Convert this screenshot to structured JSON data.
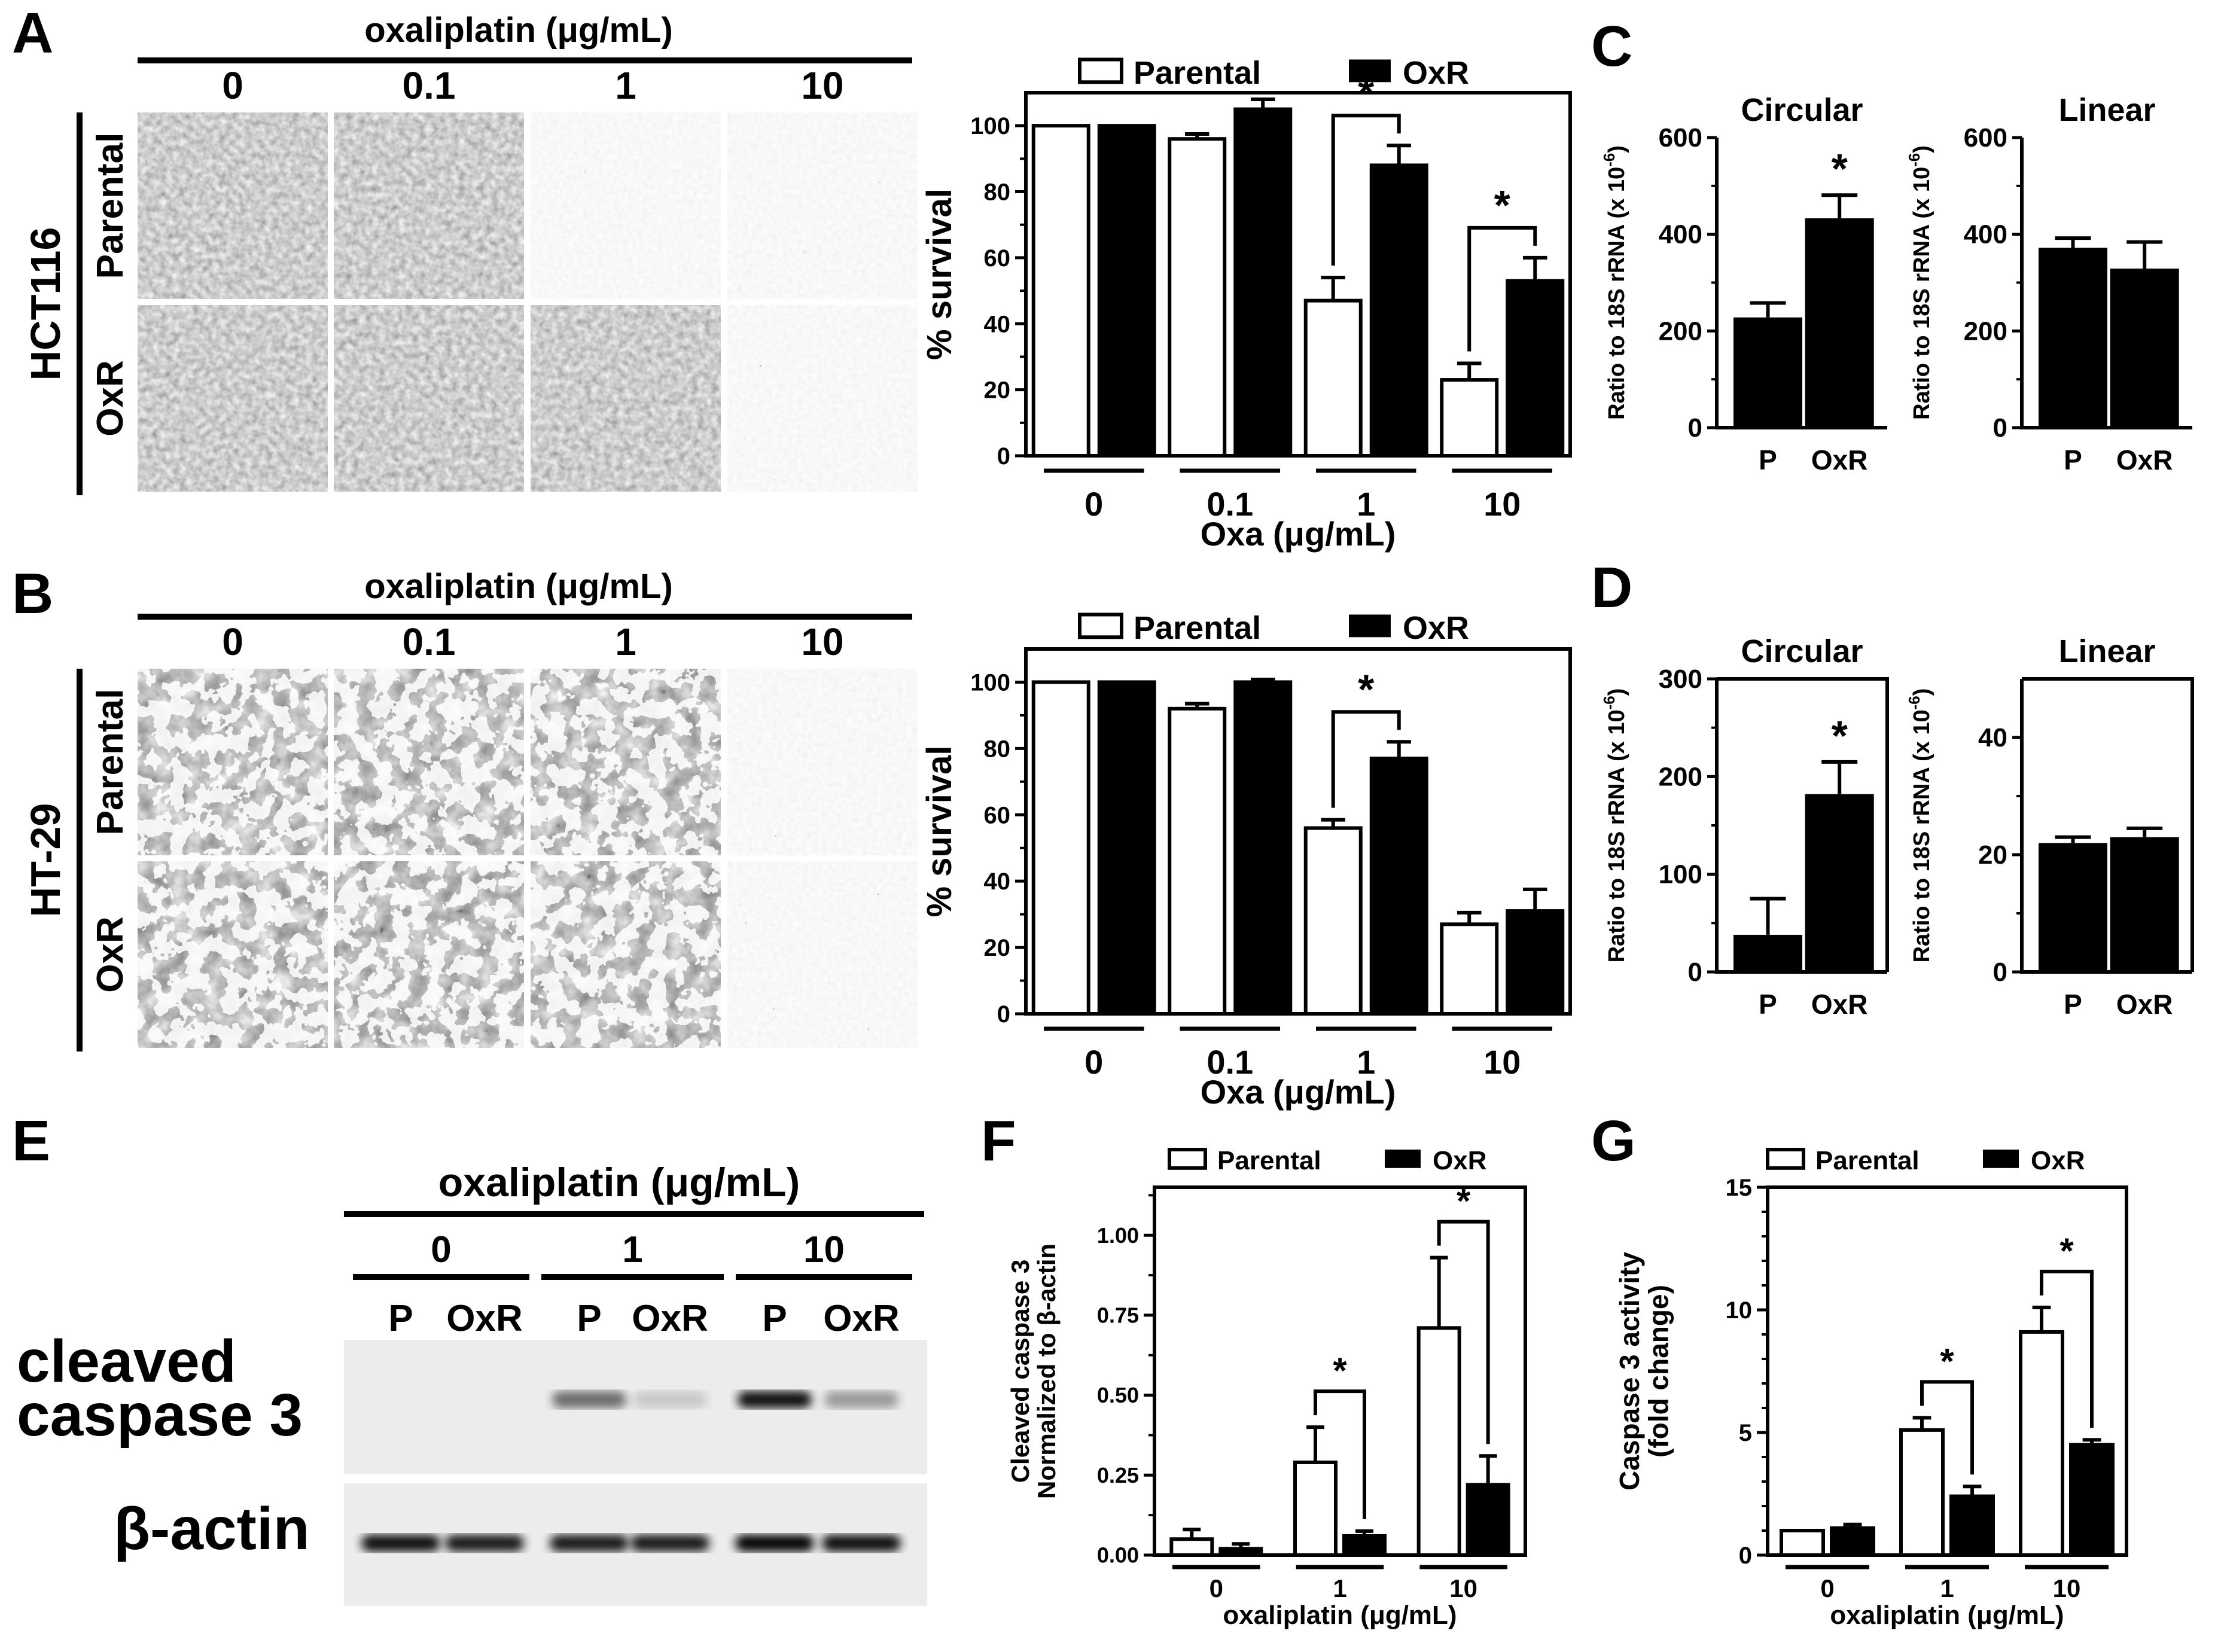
{
  "panels": {
    "A": {
      "letter": "A",
      "cell_line": "HCT116",
      "image_header": "oxaliplatin (μg/mL)",
      "columns": [
        "0",
        "0.1",
        "1",
        "10"
      ],
      "rows": [
        "Parental",
        "OxR"
      ]
    },
    "B": {
      "letter": "B",
      "cell_line": "HT-29",
      "image_header": "oxaliplatin (μg/mL)",
      "columns": [
        "0",
        "0.1",
        "1",
        "10"
      ],
      "rows": [
        "Parental",
        "OxR"
      ]
    },
    "C": {
      "letter": "C"
    },
    "D": {
      "letter": "D"
    },
    "E": {
      "letter": "E",
      "header": "oxaliplatin (μg/mL)",
      "doses": [
        "0",
        "1",
        "10"
      ],
      "lanes": [
        "P",
        "OxR",
        "P",
        "OxR",
        "P",
        "OxR"
      ],
      "bands": [
        "cleaved caspase 3",
        "β-actin"
      ],
      "band_label_line1": "cleaved",
      "band_label_line2": "caspase 3",
      "cleaved_intensity": [
        0.0,
        0.0,
        0.55,
        0.15,
        0.95,
        0.35
      ],
      "actin_intensity": [
        0.95,
        0.9,
        0.9,
        0.9,
        1.0,
        0.95
      ]
    },
    "F": {
      "letter": "F"
    },
    "G": {
      "letter": "G"
    }
  },
  "legend": {
    "parental": "Parental",
    "oxr": "OxR"
  },
  "chart_data": [
    {
      "id": "A-survival",
      "type": "bar",
      "categories": [
        "0",
        "0.1",
        "1",
        "10"
      ],
      "series": [
        {
          "name": "Parental",
          "values": [
            100,
            96,
            47,
            23
          ],
          "errors": [
            0,
            1.5,
            7,
            5
          ],
          "fill": "#ffffff"
        },
        {
          "name": "OxR",
          "values": [
            100,
            105,
            88,
            53
          ],
          "errors": [
            0,
            3,
            6,
            7
          ],
          "fill": "#000000"
        }
      ],
      "ylabel": "% survival",
      "xlabel": "Oxa (μg/mL)",
      "ylim": [
        0,
        110
      ],
      "yticks": [
        "0",
        "20",
        "40",
        "60",
        "80",
        "100"
      ],
      "significance": [
        "",
        "",
        "*",
        "*"
      ]
    },
    {
      "id": "B-survival",
      "type": "bar",
      "categories": [
        "0",
        "0.1",
        "1",
        "10"
      ],
      "series": [
        {
          "name": "Parental",
          "values": [
            100,
            92,
            56,
            27
          ],
          "errors": [
            0,
            1.5,
            2.5,
            3.5
          ],
          "fill": "#ffffff"
        },
        {
          "name": "OxR",
          "values": [
            100,
            100,
            77,
            31
          ],
          "errors": [
            0,
            0.8,
            5,
            6.5
          ],
          "fill": "#000000"
        }
      ],
      "ylabel": "% survival",
      "xlabel": "Oxa (μg/mL)",
      "ylim": [
        0,
        110
      ],
      "yticks": [
        "0",
        "20",
        "40",
        "60",
        "80",
        "100"
      ],
      "significance": [
        "",
        "",
        "*",
        ""
      ]
    },
    {
      "id": "C-circular",
      "type": "bar",
      "title": "Circular",
      "categories": [
        "P",
        "OxR"
      ],
      "values": [
        228,
        433
      ],
      "errors": [
        30,
        48
      ],
      "ylabel": "Ratio to 18S rRNA (x 10",
      "ylabel_sup": "-6",
      "ylabel_end": ")",
      "ylim": [
        0,
        600
      ],
      "yticks": [
        "0",
        "200",
        "400",
        "600"
      ],
      "significance": [
        "",
        "*"
      ]
    },
    {
      "id": "C-linear",
      "type": "bar",
      "title": "Linear",
      "categories": [
        "P",
        "OxR"
      ],
      "values": [
        372,
        329
      ],
      "errors": [
        20,
        55
      ],
      "ylabel": "Ratio to 18S rRNA (x 10",
      "ylabel_sup": "-6",
      "ylabel_end": ")",
      "ylim": [
        0,
        600
      ],
      "yticks": [
        "0",
        "200",
        "400",
        "600"
      ],
      "significance": [
        "",
        ""
      ]
    },
    {
      "id": "D-circular",
      "type": "bar",
      "title": "Circular",
      "categories": [
        "P",
        "OxR"
      ],
      "values": [
        38,
        182
      ],
      "errors": [
        37,
        33
      ],
      "ylabel": "Ratio to 18S rRNA (x 10",
      "ylabel_sup": "-6",
      "ylabel_end": ")",
      "ylim": [
        0,
        300
      ],
      "yticks": [
        "0",
        "100",
        "200",
        "300"
      ],
      "significance": [
        "",
        "*"
      ]
    },
    {
      "id": "D-linear",
      "type": "bar",
      "title": "Linear",
      "categories": [
        "P",
        "OxR"
      ],
      "values": [
        22,
        23
      ],
      "errors": [
        1,
        1.5
      ],
      "ylabel": "Ratio to 18S rRNA (x 10",
      "ylabel_sup": "-6",
      "ylabel_end": ")",
      "ylim": [
        0,
        50
      ],
      "yticks": [
        "0",
        "20",
        "40"
      ],
      "significance": [
        "",
        ""
      ]
    },
    {
      "id": "F-cleaved",
      "type": "bar",
      "categories": [
        "0",
        "1",
        "10"
      ],
      "series": [
        {
          "name": "Parental",
          "values": [
            0.05,
            0.29,
            0.71
          ],
          "errors": [
            0.03,
            0.11,
            0.22
          ],
          "fill": "#ffffff"
        },
        {
          "name": "OxR",
          "values": [
            0.02,
            0.06,
            0.22
          ],
          "errors": [
            0.015,
            0.015,
            0.09
          ],
          "fill": "#000000"
        }
      ],
      "ylabel_line1": "Cleaved caspase 3",
      "ylabel_line2": "Normalized to β-actin",
      "xlabel": "oxaliplatin (μg/mL)",
      "ylim": [
        0,
        1.15
      ],
      "yticks": [
        "0.00",
        "0.25",
        "0.50",
        "0.75",
        "1.00"
      ],
      "significance": [
        "",
        "*",
        "*"
      ]
    },
    {
      "id": "G-activity",
      "type": "bar",
      "categories": [
        "0",
        "1",
        "10"
      ],
      "series": [
        {
          "name": "Parental",
          "values": [
            1,
            5.1,
            9.1
          ],
          "errors": [
            0,
            0.5,
            1.0
          ],
          "fill": "#ffffff"
        },
        {
          "name": "OxR",
          "values": [
            1.1,
            2.4,
            4.5
          ],
          "errors": [
            0.15,
            0.4,
            0.2
          ],
          "fill": "#000000"
        }
      ],
      "ylabel_line1": "Caspase 3 activity",
      "ylabel_line2": "(fold change)",
      "xlabel": "oxaliplatin (μg/mL)",
      "ylim": [
        0,
        15
      ],
      "yticks": [
        "0",
        "5",
        "10",
        "15"
      ],
      "significance": [
        "",
        "*",
        "*"
      ]
    }
  ]
}
